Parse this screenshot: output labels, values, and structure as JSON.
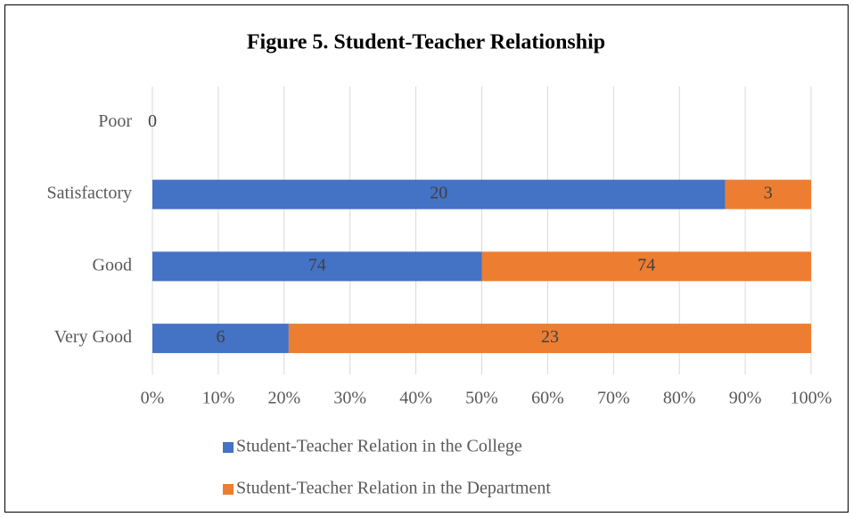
{
  "chart_data": {
    "type": "bar",
    "orientation": "horizontal",
    "stacking": "percent",
    "title": "Figure 5. Student-Teacher Relationship",
    "categories": [
      "Poor",
      "Satisfactory",
      "Good",
      "Very Good"
    ],
    "series": [
      {
        "name": "Student-Teacher Relation in the College",
        "color": "#4472c4",
        "values": [
          0,
          20,
          74,
          6
        ]
      },
      {
        "name": "Student-Teacher Relation in the Department",
        "color": "#ed7d31",
        "values": [
          null,
          3,
          74,
          23
        ]
      }
    ],
    "xlim": [
      0,
      100
    ],
    "xticks": [
      {
        "value": 0,
        "label": "0%"
      },
      {
        "value": 10,
        "label": "10%"
      },
      {
        "value": 20,
        "label": "20%"
      },
      {
        "value": 30,
        "label": "30%"
      },
      {
        "value": 40,
        "label": "40%"
      },
      {
        "value": 50,
        "label": "50%"
      },
      {
        "value": 60,
        "label": "60%"
      },
      {
        "value": 70,
        "label": "70%"
      },
      {
        "value": 80,
        "label": "80%"
      },
      {
        "value": 90,
        "label": "90%"
      },
      {
        "value": 100,
        "label": "100%"
      }
    ],
    "grid": true,
    "legend": "bottom"
  }
}
